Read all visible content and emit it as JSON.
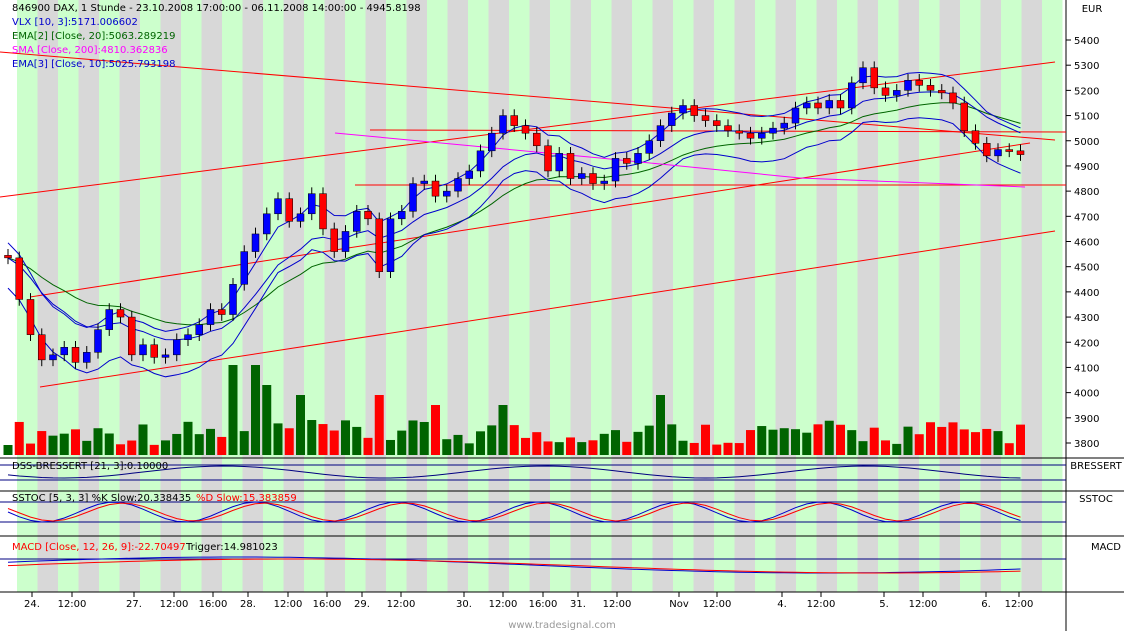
{
  "colors": {
    "up": "#0000ff",
    "down": "#ff0000",
    "vol_up": "#006400",
    "vol_down": "#ff0000",
    "band_green": "#ccffcc",
    "band_gray": "#d8d8d8",
    "ema20": "#006400",
    "sma200": "#ff00ff",
    "ema10": "#0000cc",
    "vlx": "#0000cc",
    "trend": "#ff0000"
  },
  "header": {
    "title": "846900  DAX, 1 Stunde - 23.10.2008 17:00:00 - 06.11.2008 14:00:00 - 4945.8198",
    "lines": [
      {
        "text": "VLX [10, 3]:5171.006602",
        "color": "#0000cc"
      },
      {
        "text": "EMA[2] [Close, 20]:5063.289219",
        "color": "#006400"
      },
      {
        "text": "SMA [Close, 200]:4810.362836",
        "color": "#ff00ff"
      },
      {
        "text": "EMA[3] [Close, 10]:5025.793198",
        "color": "#0000cc"
      }
    ]
  },
  "panels": {
    "dss": {
      "label": "DSS-BRESSERT [21, 3]:0.10000",
      "axis_label": "BRESSERT"
    },
    "sstoc": {
      "label": "SSTOC [5, 3, 3] %K Slow:20.338435",
      "label2": "%D Slow:15.383859",
      "axis_label": "SSTOC"
    },
    "macd": {
      "label": "MACD [Close, 12, 26, 9]:-22.70497",
      "label2": "Trigger:14.981023",
      "axis_label": "MACD"
    }
  },
  "watermark": "www.tradesignal.com",
  "chart_data": {
    "type": "candlestick",
    "currency": "EUR",
    "ylim": [
      3750,
      5500
    ],
    "y_ticks": [
      5400,
      5300,
      5200,
      5100,
      5000,
      4900,
      4800,
      4700,
      4600,
      4500,
      4400,
      4300,
      4200,
      4100,
      4000,
      3900,
      3800
    ],
    "x_labels": [
      "24.",
      "12:00",
      "27.",
      "12:00",
      "16:00",
      "28.",
      "12:00",
      "16:00",
      "29.",
      "12:00",
      "30.",
      "12:00",
      "16:00",
      "31.",
      "12:00",
      "Nov",
      "12:00",
      "4.",
      "12:00",
      "5.",
      "12:00",
      "6.",
      "12:00"
    ],
    "closes": [
      4535,
      4370,
      4230,
      4130,
      4150,
      4180,
      4120,
      4160,
      4250,
      4330,
      4300,
      4150,
      4190,
      4140,
      4150,
      4210,
      4230,
      4270,
      4330,
      4310,
      4430,
      4560,
      4630,
      4710,
      4770,
      4680,
      4710,
      4790,
      4650,
      4560,
      4640,
      4720,
      4690,
      4480,
      4690,
      4720,
      4830,
      4840,
      4780,
      4800,
      4850,
      4880,
      4960,
      5030,
      5100,
      5060,
      5030,
      4980,
      4880,
      4950,
      4850,
      4870,
      4830,
      4840,
      4930,
      4910,
      4950,
      5000,
      5060,
      5110,
      5140,
      5100,
      5080,
      5060,
      5040,
      5030,
      5010,
      5030,
      5050,
      5070,
      5130,
      5150,
      5130,
      5160,
      5130,
      5230,
      5290,
      5210,
      5180,
      5200,
      5240,
      5220,
      5200,
      5190,
      5150,
      5040,
      4990,
      4940,
      4965,
      4960,
      4945
    ],
    "volume_bars": 91
  }
}
